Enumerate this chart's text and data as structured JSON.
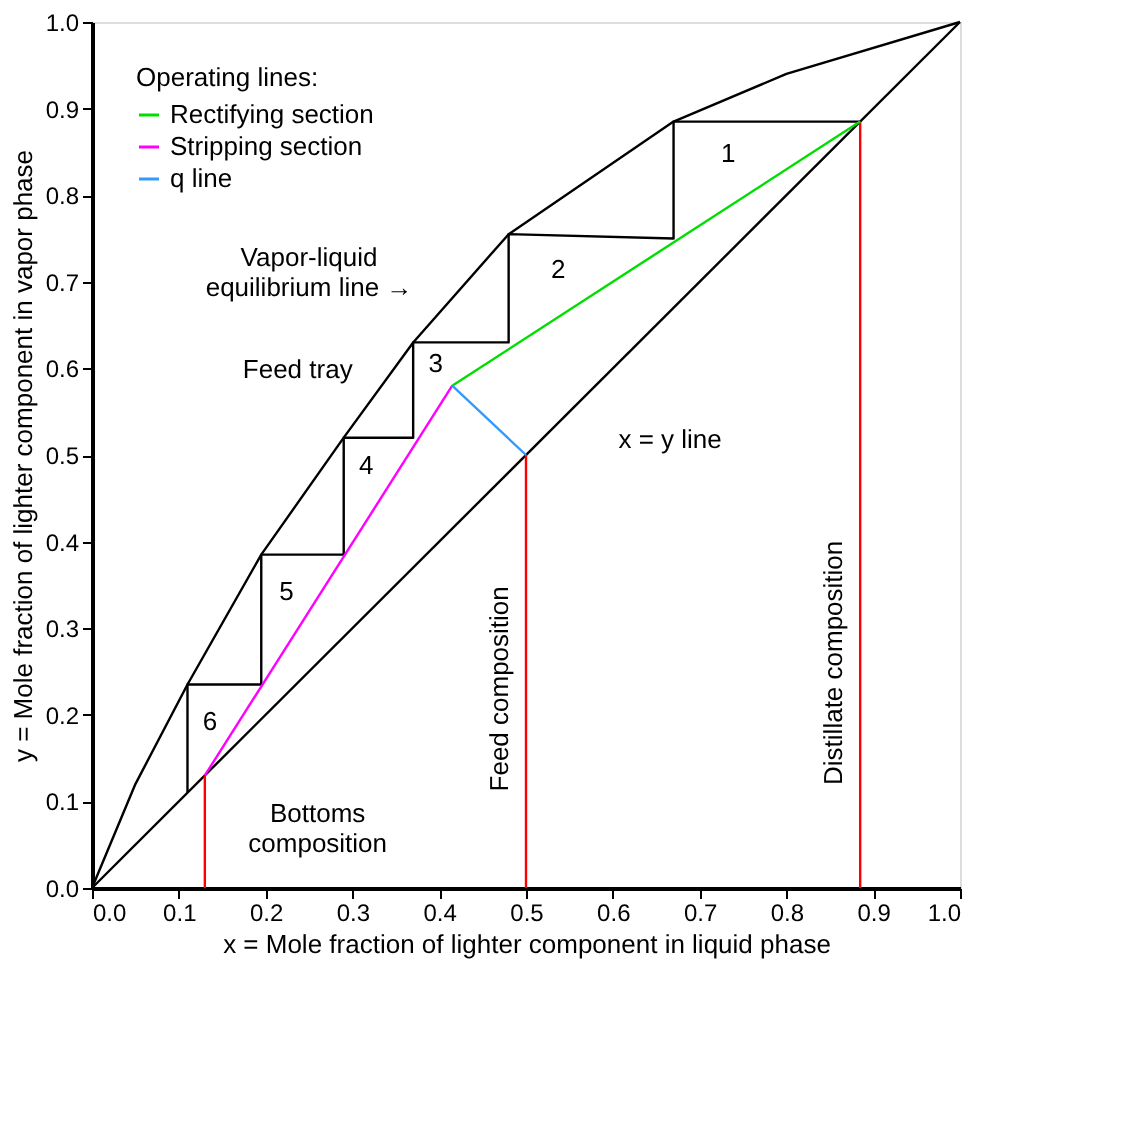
{
  "chart_data": {
    "type": "line",
    "xlabel": "x = Mole fraction of lighter component in liquid phase",
    "ylabel": "y = Mole fraction of lighter component in vapor phase",
    "legend_title": "Operating lines:",
    "legend": "top left",
    "grid": false,
    "marker": "none",
    "line_style": "solid",
    "xlim": [
      0,
      1
    ],
    "ylim": [
      0,
      1
    ],
    "xticks": [
      {
        "value": 0,
        "label": "0.0"
      },
      {
        "value": 0.1,
        "label": "0.1"
      },
      {
        "value": 0.2,
        "label": "0.2"
      },
      {
        "value": 0.3,
        "label": "0.3"
      },
      {
        "value": 0.4,
        "label": "0.4"
      },
      {
        "value": 0.5,
        "label": "0.5"
      },
      {
        "value": 0.6,
        "label": "0.6"
      },
      {
        "value": 0.7,
        "label": "0.7"
      },
      {
        "value": 0.8,
        "label": "0.8"
      },
      {
        "value": 0.9,
        "label": "0.9"
      },
      {
        "value": 1,
        "label": "1.0"
      }
    ],
    "yticks": [
      {
        "value": 0,
        "label": "0.0"
      },
      {
        "value": 0.1,
        "label": "0.1"
      },
      {
        "value": 0.2,
        "label": "0.2"
      },
      {
        "value": 0.3,
        "label": "0.3"
      },
      {
        "value": 0.4,
        "label": "0.4"
      },
      {
        "value": 0.5,
        "label": "0.5"
      },
      {
        "value": 0.6,
        "label": "0.6"
      },
      {
        "value": 0.7,
        "label": "0.7"
      },
      {
        "value": 0.8,
        "label": "0.8"
      },
      {
        "value": 0.9,
        "label": "0.9"
      },
      {
        "value": 1,
        "label": "1.0"
      }
    ],
    "series": [
      {
        "color": "#000000",
        "x": [
          0,
          0.05,
          0.11,
          0.195,
          0.29,
          0.37,
          0.48,
          0.67,
          0.8,
          1
        ],
        "values": [
          0,
          0.12,
          0.235,
          0.385,
          0.52,
          0.63,
          0.755,
          0.885,
          0.94,
          1
        ]
      },
      {
        "color": "#000000",
        "x": [
          0,
          1
        ],
        "values": [
          0,
          1
        ]
      },
      {
        "color": "#000000",
        "x": [
          0.885,
          0.67,
          0.67,
          0.48,
          0.48,
          0.37,
          0.37,
          0.29,
          0.29,
          0.195,
          0.195,
          0.11,
          0.11
        ],
        "values": [
          0.885,
          0.885,
          0.75,
          0.755,
          0.63,
          0.63,
          0.52,
          0.52,
          0.385,
          0.385,
          0.235,
          0.235,
          0.11
        ]
      },
      {
        "name": "Rectifying section",
        "color": "#00dd00",
        "x": [
          0.415,
          0.885
        ],
        "values": [
          0.58,
          0.885
        ]
      },
      {
        "name": "Stripping section",
        "color": "#ff00ff",
        "x": [
          0.13,
          0.415
        ],
        "values": [
          0.13,
          0.58
        ]
      },
      {
        "name": "q line",
        "color": "#3399ff",
        "x": [
          0.5,
          0.415
        ],
        "values": [
          0.5,
          0.58
        ]
      },
      {
        "color": "#ff0000",
        "x": [
          0.13,
          0.13
        ],
        "values": [
          0,
          0.13
        ]
      },
      {
        "color": "#ff0000",
        "x": [
          0.5,
          0.5
        ],
        "values": [
          0,
          0.5
        ]
      },
      {
        "color": "#ff0000",
        "x": [
          0.885,
          0.885
        ],
        "values": [
          0,
          0.885
        ]
      }
    ],
    "annotations": [
      "1",
      "2",
      "3",
      "4",
      "5",
      "6",
      "Vapor-liquid\nequilibrium line →",
      "Feed tray",
      "x = y  line",
      "Bottoms\ncomposition",
      "Feed composition",
      "Distillate composition"
    ]
  }
}
